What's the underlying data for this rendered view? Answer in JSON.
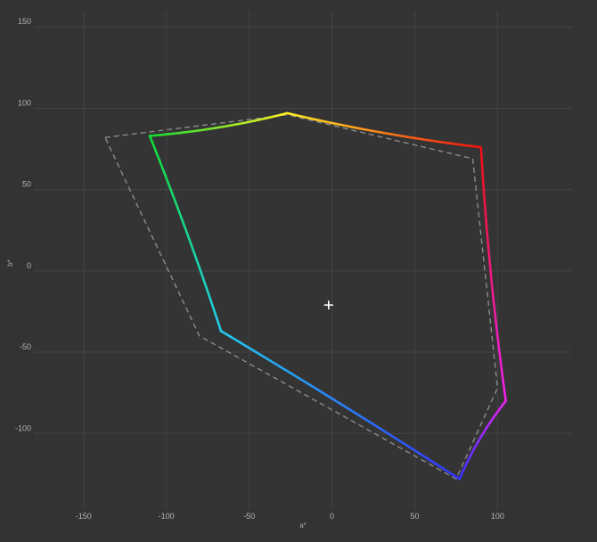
{
  "chart_data": {
    "type": "line",
    "title": "",
    "xlabel": "a*",
    "ylabel": "b*",
    "xlim": [
      -180,
      145
    ],
    "ylim": [
      -147,
      160
    ],
    "xticks": [
      -150,
      -100,
      -50,
      0,
      50,
      100
    ],
    "yticks": [
      150,
      100,
      50,
      0,
      -50,
      -100
    ],
    "tick_labels": {
      "x": [
        "-150",
        "-100",
        "-50",
        "0",
        "50",
        "100"
      ],
      "y": [
        "150",
        "100",
        "50",
        "0",
        "-50",
        "-100"
      ]
    },
    "grid": true,
    "legend": "none",
    "white_point": {
      "a": -2,
      "b": -21
    },
    "series": [
      {
        "style": "solid-rainbow",
        "vertices": [
          {
            "a": -27,
            "b": 97,
            "color": "#ffee22"
          },
          {
            "a": 90,
            "b": 76,
            "color": "#ee1111"
          },
          {
            "a": 105,
            "b": -80,
            "color": "#ee22ee"
          },
          {
            "a": 77,
            "b": -128,
            "color": "#3333ff"
          },
          {
            "a": -67,
            "b": -37,
            "color": "#22ccee"
          },
          {
            "a": -110,
            "b": 83,
            "color": "#11dd33"
          }
        ]
      },
      {
        "style": "dashed-gray",
        "color": "#8a8a8a",
        "points": [
          [
            -137,
            82
          ],
          [
            -27,
            96
          ],
          [
            85,
            69
          ],
          [
            100,
            -72
          ],
          [
            75,
            -128
          ],
          [
            -80,
            -40
          ],
          [
            -137,
            82
          ]
        ]
      }
    ]
  }
}
